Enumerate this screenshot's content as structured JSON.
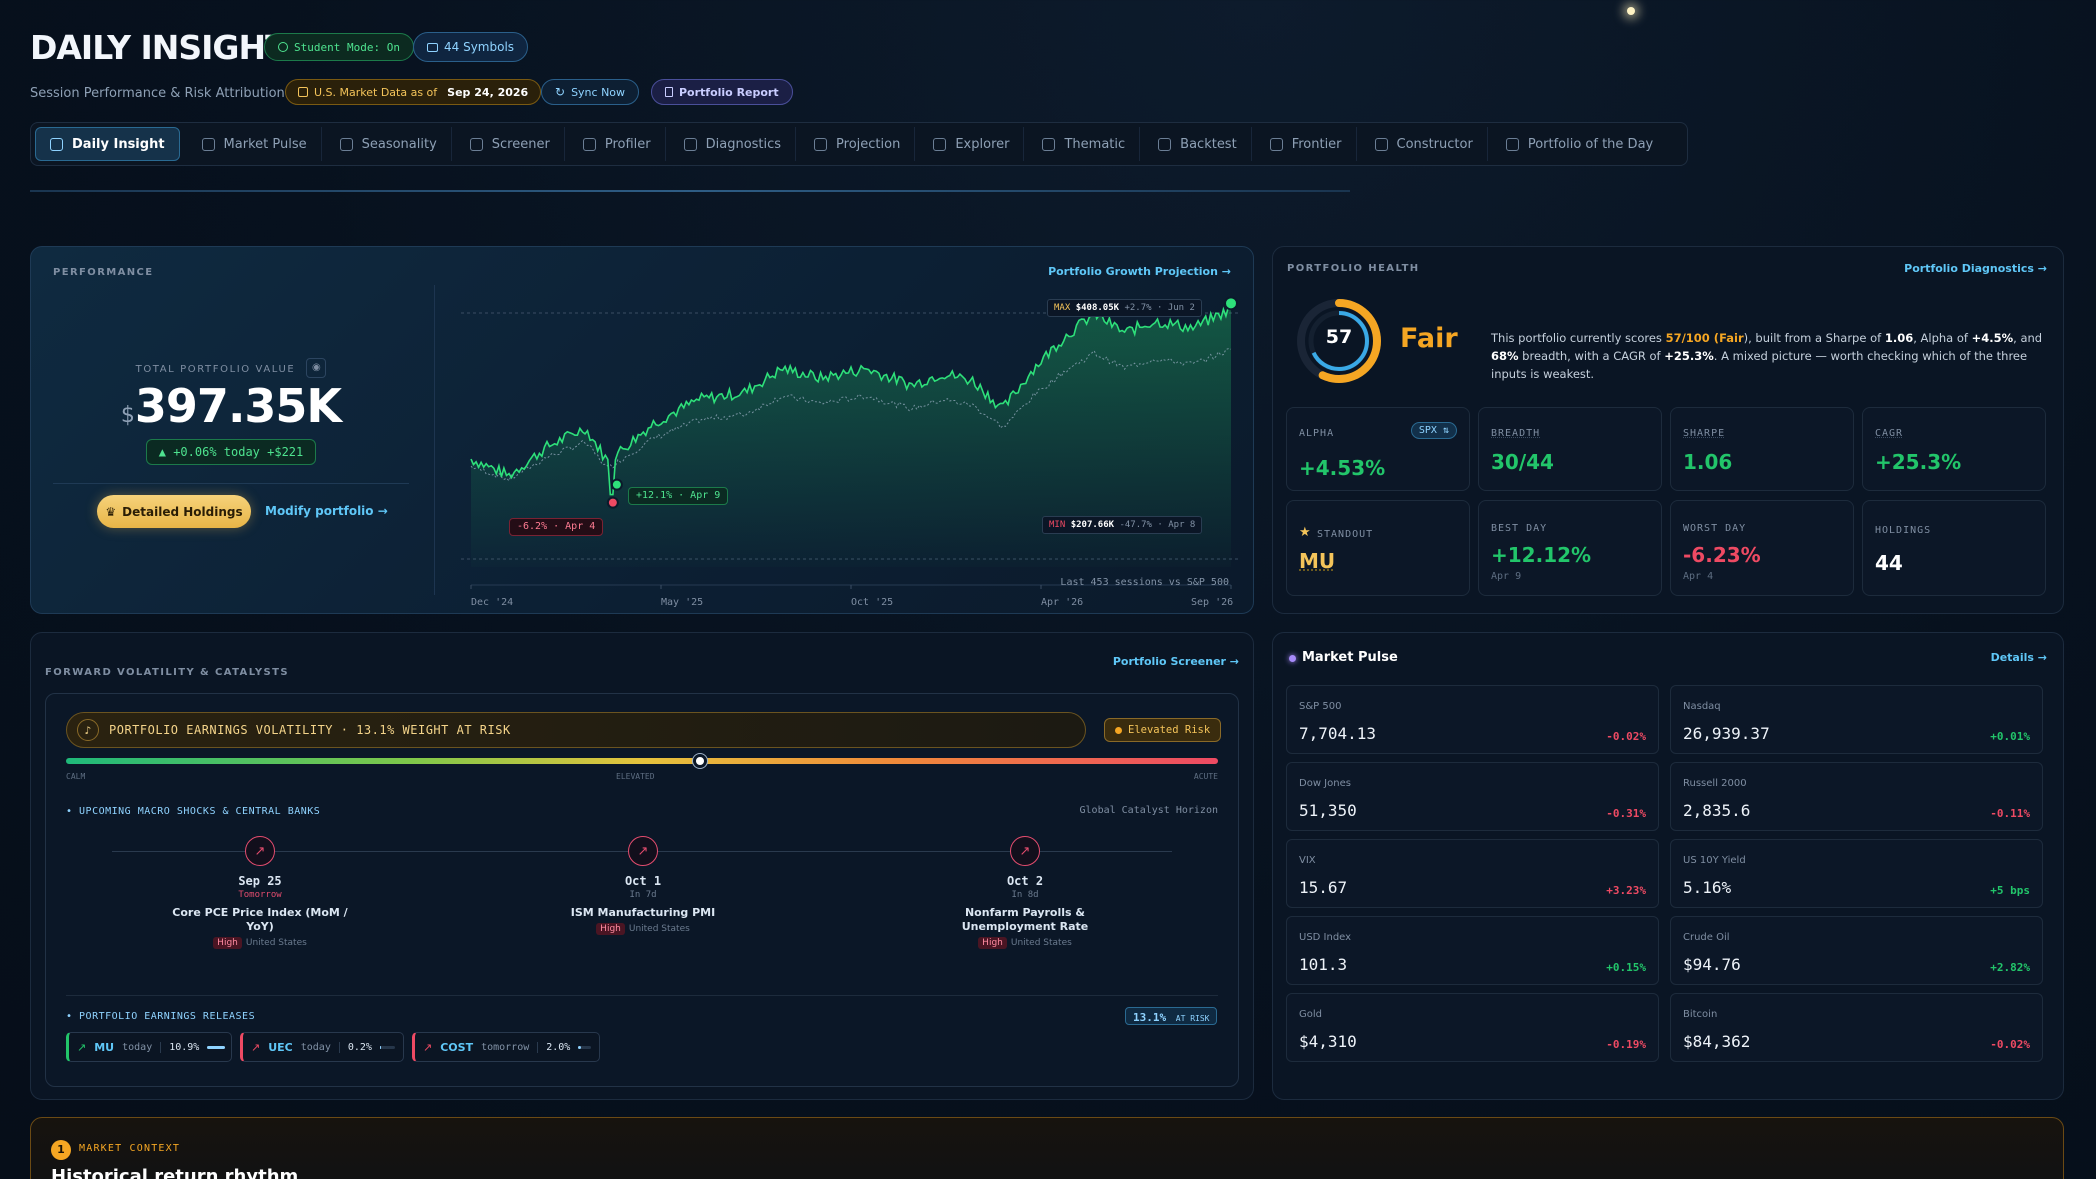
{
  "header": {
    "title": "DAILY INSIGHT",
    "student_mode": "Student Mode: On",
    "symbols": "44 Symbols",
    "subtitle": "Session Performance & Risk Attribution",
    "market_data_label": "U.S. Market Data as of",
    "market_data_date": "Sep 24, 2026",
    "sync_label": "Sync Now",
    "report_label": "Portfolio Report"
  },
  "tabs": [
    {
      "label": "Daily Insight",
      "icon": "chart-icon",
      "active": true
    },
    {
      "label": "Market Pulse",
      "icon": "globe-icon"
    },
    {
      "label": "Seasonality",
      "icon": "calendar-icon"
    },
    {
      "label": "Screener",
      "icon": "tag-icon"
    },
    {
      "label": "Profiler",
      "icon": "bar-icon"
    },
    {
      "label": "Diagnostics",
      "icon": "search-icon"
    },
    {
      "label": "Projection",
      "icon": "bar-icon"
    },
    {
      "label": "Explorer",
      "icon": "folder-icon"
    },
    {
      "label": "Thematic",
      "icon": "network-icon"
    },
    {
      "label": "Backtest",
      "icon": "bar-icon"
    },
    {
      "label": "Frontier",
      "icon": "line-icon"
    },
    {
      "label": "Constructor",
      "icon": "build-icon"
    },
    {
      "label": "Portfolio of the Day",
      "icon": "calendar-icon"
    }
  ],
  "performance": {
    "label": "PERFORMANCE",
    "projection_link": "Portfolio Growth Projection →",
    "total_label": "TOTAL PORTFOLIO VALUE",
    "currency": "$",
    "value": "397.35K",
    "today_change": "▲ +0.06% today +$221",
    "holdings_button": "Detailed Holdings",
    "modify_link": "Modify portfolio →",
    "max_tag": "MAX",
    "max_value": "$408.05K",
    "max_detail": "+2.7% · Jun 2",
    "min_tag": "MIN",
    "min_value": "$207.66K",
    "min_detail": "-47.7% · Apr 8",
    "drawdown_label": "-6.2% · Apr 4",
    "rebound_label": "+12.1% · Apr 9",
    "x_ticks": [
      "Dec '24",
      "May '25",
      "Oct '25",
      "Apr '26",
      "Sep '26"
    ],
    "footer": "Last 453 sessions vs S&P 500"
  },
  "health": {
    "label": "PORTFOLIO HEALTH",
    "diagnostics_link": "Portfolio Diagnostics →",
    "score": "57",
    "score_fraction": 0.57,
    "rating": "Fair",
    "desc_1": "This portfolio currently scores ",
    "desc_score": "57/100 (",
    "desc_rating": "Fair",
    "desc_2": "), built from a Sharpe of ",
    "desc_sharpe": "1.06",
    "desc_3": ", Alpha of ",
    "desc_alpha": "+4.5%",
    "desc_4": ", and ",
    "desc_breadth": "68%",
    "desc_5": " breadth, with a CAGR of ",
    "desc_cagr": "+25.3%",
    "desc_6": ". A mixed picture — worth checking which of the three inputs is weakest.",
    "tiles": [
      {
        "label": "ALPHA",
        "value": "+4.53%",
        "badge": "SPX ⇅"
      },
      {
        "label": "BREADTH",
        "value": "30/44"
      },
      {
        "label": "SHARPE",
        "value": "1.06"
      },
      {
        "label": "CAGR",
        "value": "+25.3%"
      },
      {
        "label": "STANDOUT",
        "value": "MU"
      },
      {
        "label": "BEST DAY",
        "value": "+12.12%",
        "sub": "Apr 9"
      },
      {
        "label": "WORST DAY",
        "value": "-6.23%",
        "sub": "Apr 4"
      },
      {
        "label": "HOLDINGS",
        "value": "44"
      }
    ]
  },
  "volatility": {
    "label": "FORWARD VOLATILITY & CATALYSTS",
    "screener_link": "Portfolio Screener →",
    "banner": "PORTFOLIO EARNINGS VOLATILITY · 13.1% WEIGHT AT RISK",
    "risk_badge": "Elevated Risk",
    "gauge_level": 0.55,
    "scale": [
      "CALM",
      "ELEVATED",
      "ACUTE"
    ],
    "macro_label": "• UPCOMING MACRO SHOCKS & CENTRAL BANKS",
    "horizon_label": "Global Catalyst Horizon",
    "events": [
      {
        "date": "Sep 25",
        "rel": "Tomorrow",
        "name": "Core PCE Price Index (MoM / YoY)",
        "impact": "High",
        "region": "United States"
      },
      {
        "date": "Oct 1",
        "rel": "In 7d",
        "name": "ISM Manufacturing PMI",
        "impact": "High",
        "region": "United States"
      },
      {
        "date": "Oct 2",
        "rel": "In 8d",
        "name": "Nonfarm Payrolls & Unemployment Rate",
        "impact": "High",
        "region": "United States"
      }
    ],
    "earnings_label": "• PORTFOLIO EARNINGS RELEASES",
    "at_risk_value": "13.1%",
    "at_risk_label": "AT RISK",
    "releases": [
      {
        "symbol": "MU",
        "when": "today",
        "weight": "10.9%",
        "bar": 0.83,
        "color": "#22c56a"
      },
      {
        "symbol": "UEC",
        "when": "today",
        "weight": "0.2%",
        "bar": 0.05,
        "color": "#ee4a63"
      },
      {
        "symbol": "COST",
        "when": "tomorrow",
        "weight": "2.0%",
        "bar": 0.15,
        "color": "#ee4a63"
      }
    ]
  },
  "market_pulse": {
    "title": "Market Pulse",
    "details_link": "Details →",
    "items": [
      {
        "name": "S&P 500",
        "value": "7,704.13",
        "change": "-0.02%",
        "dir": "neg"
      },
      {
        "name": "Nasdaq",
        "value": "26,939.37",
        "change": "+0.01%",
        "dir": "pos"
      },
      {
        "name": "Dow Jones",
        "value": "51,350",
        "change": "-0.31%",
        "dir": "neg"
      },
      {
        "name": "Russell 2000",
        "value": "2,835.6",
        "change": "-0.11%",
        "dir": "neg"
      },
      {
        "name": "VIX",
        "value": "15.67",
        "change": "+3.23%",
        "dir": "neg"
      },
      {
        "name": "US 10Y Yield",
        "value": "5.16%",
        "change": "+5 bps",
        "dir": "pos"
      },
      {
        "name": "USD Index",
        "value": "101.3",
        "change": "+0.15%",
        "dir": "pos"
      },
      {
        "name": "Crude Oil",
        "value": "$94.76",
        "change": "+2.82%",
        "dir": "pos"
      },
      {
        "name": "Gold",
        "value": "$4,310",
        "change": "-0.19%",
        "dir": "neg"
      },
      {
        "name": "Bitcoin",
        "value": "$84,362",
        "change": "-0.02%",
        "dir": "neg"
      }
    ]
  },
  "context": {
    "num": "1",
    "label": "MARKET CONTEXT",
    "title": "Historical return rhythm"
  }
}
